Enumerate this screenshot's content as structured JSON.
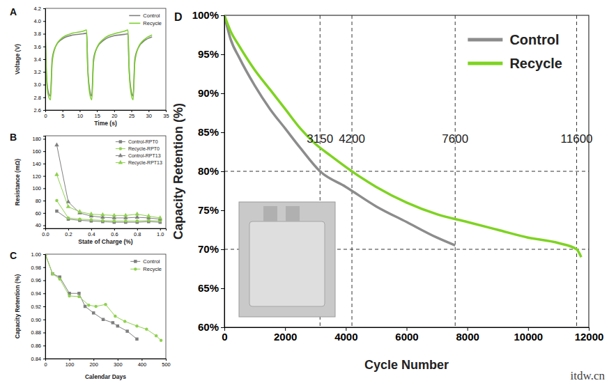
{
  "chart_data": [
    {
      "panel": "A",
      "type": "line",
      "x_label": "Time (s)",
      "y_label": "Voltage (V)",
      "legend": "top-right",
      "x": [
        0,
        0.3,
        0.8,
        1.5,
        2,
        3,
        5,
        8,
        11,
        12,
        12.3,
        12.8,
        13.5,
        14,
        15,
        17,
        20,
        23,
        24,
        24.3,
        24.8,
        25.5,
        26,
        27,
        29,
        31
      ],
      "series": [
        {
          "name": "Control",
          "color": "#7f7f7f",
          "values": [
            3.8,
            3.2,
            2.9,
            2.82,
            3.4,
            3.6,
            3.72,
            3.78,
            3.8,
            3.81,
            3.3,
            2.95,
            2.82,
            3.4,
            3.58,
            3.7,
            3.77,
            3.79,
            3.8,
            3.3,
            2.95,
            2.82,
            3.4,
            3.58,
            3.7,
            3.75
          ]
        },
        {
          "name": "Recycle",
          "color": "#7ccf2e",
          "values": [
            3.85,
            3.2,
            2.85,
            2.76,
            3.35,
            3.6,
            3.74,
            3.81,
            3.84,
            3.86,
            3.3,
            2.9,
            2.76,
            3.35,
            3.58,
            3.72,
            3.8,
            3.84,
            3.86,
            3.3,
            2.9,
            2.76,
            3.35,
            3.58,
            3.72,
            3.78
          ]
        }
      ],
      "xlim": [
        0,
        35
      ],
      "xticks": [
        0,
        5,
        10,
        15,
        20,
        25,
        30,
        35
      ],
      "ylim": [
        2.6,
        4.2
      ],
      "yticks": [
        2.6,
        2.8,
        {
          "value": 3,
          "label": "3.0"
        },
        3.2,
        3.4,
        3.6,
        3.8,
        {
          "value": 4,
          "label": "4.0"
        },
        4.2
      ]
    },
    {
      "panel": "B",
      "type": "line",
      "x_label": "State of Charge (%)",
      "y_label": "Resistance (mΩ)",
      "legend": "top-right",
      "x": [
        0.1,
        0.2,
        0.3,
        0.4,
        0.5,
        0.6,
        0.7,
        0.8,
        0.9,
        1
      ],
      "series": [
        {
          "name": "Control-RPT0",
          "color": "#7f7f7f",
          "marker": "square",
          "values": [
            63,
            50,
            48,
            47,
            46,
            45,
            45,
            45,
            46,
            45
          ]
        },
        {
          "name": "Recycle-RPT0",
          "color": "#8fd14f",
          "marker": "circle",
          "values": [
            80,
            52,
            50,
            49,
            48,
            47,
            47,
            47,
            48,
            47
          ]
        },
        {
          "name": "Control-RPT13",
          "color": "#7f7f7f",
          "marker": "triangle",
          "values": [
            170,
            78,
            60,
            55,
            53,
            52,
            52,
            53,
            52,
            50
          ]
        },
        {
          "name": "Recycle-RPT13",
          "color": "#8fd14f",
          "marker": "triangle",
          "values": [
            122,
            70,
            62,
            58,
            57,
            56,
            56,
            58,
            55,
            52
          ]
        }
      ],
      "xlim": [
        0,
        1.05
      ],
      "xticks": [
        {
          "value": 0,
          "label": "0.0"
        },
        0.2,
        0.4,
        0.6,
        0.8,
        {
          "value": 1,
          "label": "1.0"
        }
      ],
      "ylim": [
        35,
        185
      ],
      "yticks": [
        40,
        60,
        80,
        100,
        120,
        140,
        160,
        180
      ]
    },
    {
      "panel": "C",
      "type": "line",
      "x_label": "Calendar Days",
      "y_label": "Capacity Retention (%)",
      "legend": "top-right",
      "series": [
        {
          "name": "Control",
          "color": "#7f7f7f",
          "marker": "square",
          "x": [
            0,
            30,
            60,
            100,
            140,
            165,
            200,
            240,
            280,
            300,
            340,
            380
          ],
          "values": [
            1,
            0.97,
            0.965,
            0.94,
            0.94,
            0.92,
            0.91,
            0.9,
            0.895,
            0.89,
            0.882,
            0.87
          ]
        },
        {
          "name": "Recycle",
          "color": "#8fd14f",
          "marker": "circle",
          "x": [
            0,
            30,
            60,
            100,
            140,
            180,
            210,
            250,
            290,
            330,
            380,
            420,
            460,
            480
          ],
          "values": [
            1,
            0.97,
            0.962,
            0.936,
            0.935,
            0.922,
            0.92,
            0.923,
            0.905,
            0.897,
            0.89,
            0.885,
            0.875,
            0.868
          ]
        }
      ],
      "xlim": [
        0,
        500
      ],
      "xticks": [
        0,
        100,
        200,
        300,
        400,
        500
      ],
      "ylim": [
        0.84,
        1
      ],
      "yticks": [
        0.84,
        0.86,
        0.88,
        {
          "value": 0.9,
          "label": "0.90"
        },
        0.92,
        0.94,
        0.96,
        0.98,
        {
          "value": 1,
          "label": "1.00"
        }
      ]
    },
    {
      "panel": "D",
      "type": "line",
      "x_label": "Cycle Number",
      "y_label": "Capacity Retention (%)",
      "legend": "top-right",
      "series": [
        {
          "name": "Control",
          "color": "#8c8c8c",
          "x": [
            0,
            200,
            500,
            1000,
            1500,
            2000,
            2500,
            3150,
            4000,
            5000,
            6000,
            7000,
            7600
          ],
          "values": [
            100,
            97,
            94.5,
            91,
            88,
            85.5,
            83,
            80,
            78,
            75.5,
            73.5,
            71.5,
            70.5
          ]
        },
        {
          "name": "Recycle",
          "color": "#7ed321",
          "x": [
            0,
            200,
            500,
            1000,
            1500,
            2000,
            2500,
            3000,
            3500,
            4200,
            5000,
            6000,
            7000,
            8000,
            9000,
            10000,
            11000,
            11600,
            11750
          ],
          "values": [
            100,
            98,
            96,
            93,
            90.5,
            88,
            85.5,
            83.5,
            82,
            80,
            78,
            76,
            74.5,
            73.5,
            72.5,
            71.5,
            70.8,
            70,
            69
          ]
        }
      ],
      "hlines": [
        80,
        70
      ],
      "vlines": [
        3150,
        4200,
        7600,
        11600
      ],
      "xlim": [
        0,
        12000
      ],
      "xticks": [
        0,
        2000,
        4000,
        6000,
        8000,
        10000,
        12000
      ],
      "ylim": [
        60,
        100
      ],
      "yticks": [
        {
          "value": 60,
          "label": "60%"
        },
        {
          "value": 65,
          "label": "65%"
        },
        {
          "value": 70,
          "label": "70%"
        },
        {
          "value": 75,
          "label": "75%"
        },
        {
          "value": 80,
          "label": "80%"
        },
        {
          "value": 85,
          "label": "85%"
        },
        {
          "value": 90,
          "label": "90%"
        },
        {
          "value": 95,
          "label": "95%"
        },
        {
          "value": 100,
          "label": "100%"
        }
      ]
    }
  ],
  "watermark": "itdw.cn"
}
